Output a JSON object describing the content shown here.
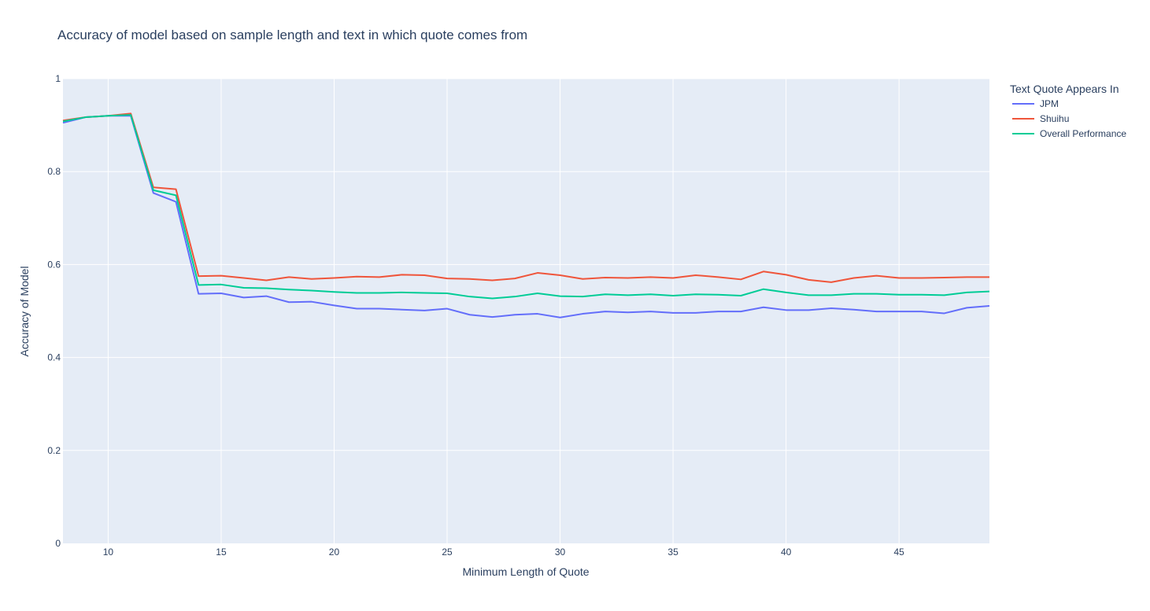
{
  "chart_data": {
    "type": "line",
    "title": "Accuracy of model based on sample length and text in which quote comes from",
    "xlabel": "Minimum Length of Quote",
    "ylabel": "Accuracy of Model",
    "xlim": [
      8,
      49
    ],
    "ylim": [
      0,
      1
    ],
    "x_ticks": [
      10,
      15,
      20,
      25,
      30,
      35,
      40,
      45
    ],
    "y_ticks": [
      0,
      0.2,
      0.4,
      0.6,
      0.8,
      1
    ],
    "y_tick_labels": [
      "0",
      "0.2",
      "0.4",
      "0.6",
      "0.8",
      "1"
    ],
    "grid": true,
    "plot_background": "#e5ecf6",
    "legend": {
      "title": "Text Quote Appears In",
      "position": "right"
    },
    "x": [
      8,
      9,
      10,
      11,
      12,
      13,
      14,
      15,
      16,
      17,
      18,
      19,
      20,
      21,
      22,
      23,
      24,
      25,
      26,
      27,
      28,
      29,
      30,
      31,
      32,
      33,
      34,
      35,
      36,
      37,
      38,
      39,
      40,
      41,
      42,
      43,
      44,
      45,
      46,
      47,
      48,
      49
    ],
    "series": [
      {
        "name": "JPM",
        "color": "#636efa",
        "values": [
          0.905,
          0.917,
          0.92,
          0.92,
          0.754,
          0.735,
          0.537,
          0.538,
          0.529,
          0.532,
          0.519,
          0.52,
          0.512,
          0.505,
          0.505,
          0.503,
          0.501,
          0.505,
          0.492,
          0.487,
          0.492,
          0.494,
          0.486,
          0.494,
          0.499,
          0.497,
          0.499,
          0.496,
          0.496,
          0.499,
          0.499,
          0.508,
          0.502,
          0.502,
          0.506,
          0.503,
          0.499,
          0.499,
          0.499,
          0.495,
          0.507,
          0.511
        ]
      },
      {
        "name": "Shuihu",
        "color": "#ef553b",
        "values": [
          0.91,
          0.917,
          0.92,
          0.925,
          0.766,
          0.762,
          0.575,
          0.576,
          0.571,
          0.566,
          0.573,
          0.569,
          0.571,
          0.574,
          0.573,
          0.578,
          0.577,
          0.57,
          0.569,
          0.566,
          0.57,
          0.582,
          0.577,
          0.569,
          0.572,
          0.571,
          0.573,
          0.571,
          0.577,
          0.573,
          0.568,
          0.585,
          0.578,
          0.567,
          0.562,
          0.571,
          0.576,
          0.571,
          0.571,
          0.572,
          0.573,
          0.573
        ]
      },
      {
        "name": "Overall Performance",
        "color": "#00cc96",
        "values": [
          0.908,
          0.917,
          0.92,
          0.922,
          0.76,
          0.749,
          0.556,
          0.557,
          0.55,
          0.549,
          0.546,
          0.544,
          0.541,
          0.539,
          0.539,
          0.54,
          0.539,
          0.538,
          0.531,
          0.527,
          0.531,
          0.538,
          0.532,
          0.531,
          0.536,
          0.534,
          0.536,
          0.533,
          0.536,
          0.535,
          0.533,
          0.547,
          0.54,
          0.534,
          0.534,
          0.537,
          0.537,
          0.535,
          0.535,
          0.534,
          0.54,
          0.542
        ]
      }
    ]
  }
}
